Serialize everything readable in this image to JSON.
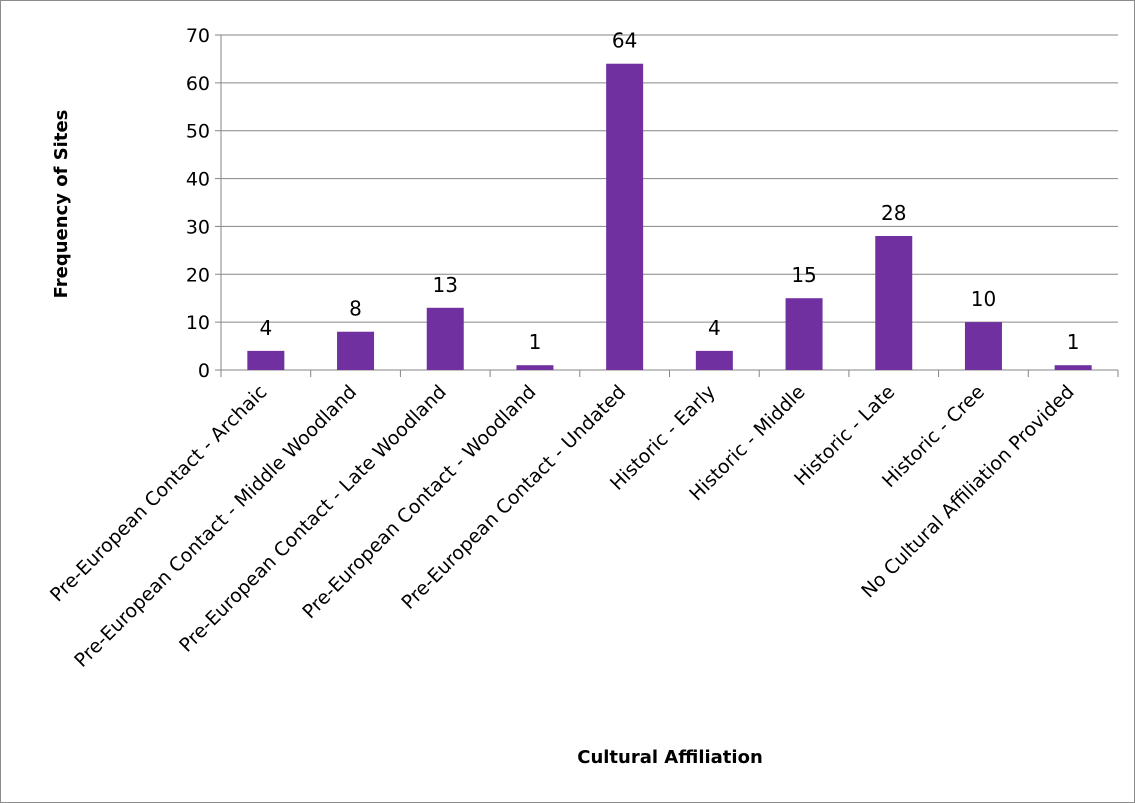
{
  "chart_data": {
    "type": "bar",
    "title": "",
    "xlabel": "Cultural Affiliation",
    "ylabel": "Frequency of Sites",
    "ylim": [
      0,
      70
    ],
    "yticks": [
      0,
      10,
      20,
      30,
      40,
      50,
      60,
      70
    ],
    "grid": "horizontal",
    "legend": "none",
    "data_labels": true,
    "bar_color": "#7030A0",
    "categories": [
      "Pre-European Contact - Archaic",
      "Pre-European Contact - Middle Woodland",
      "Pre-European Contact - Late Woodland",
      "Pre-European Contact - Woodland",
      "Pre-European Contact - Undated",
      "Historic - Early",
      "Historic - Middle",
      "Historic - Late",
      "Historic - Cree",
      "No Cultural Affiliation Provided"
    ],
    "values": [
      4,
      8,
      13,
      1,
      64,
      4,
      15,
      28,
      10,
      1
    ]
  }
}
